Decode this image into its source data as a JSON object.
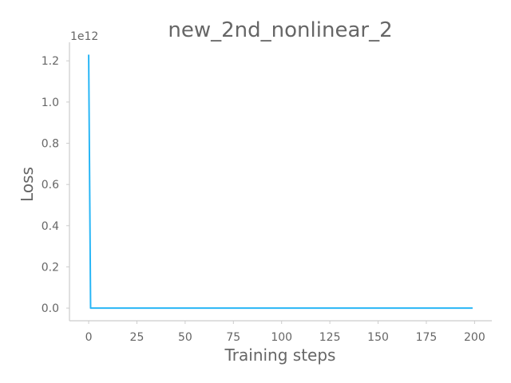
{
  "chart_data": {
    "type": "line",
    "title": "new_2nd_nonlinear_2",
    "xlabel": "Training steps",
    "ylabel": "Loss",
    "y_offset_label": "1e12",
    "y_scale": 1000000000000.0,
    "xlim": [
      -9.95,
      208.95
    ],
    "ylim": [
      -0.0615,
      1.29
    ],
    "x_ticks": [
      0,
      25,
      50,
      75,
      100,
      125,
      150,
      175,
      200
    ],
    "x_tick_labels": [
      "0",
      "25",
      "50",
      "75",
      "100",
      "125",
      "150",
      "175",
      "200"
    ],
    "y_ticks": [
      0.0,
      0.2,
      0.4,
      0.6,
      0.8,
      1.0,
      1.2
    ],
    "y_tick_labels": [
      "0.0",
      "0.2",
      "0.4",
      "0.6",
      "0.8",
      "1.0",
      "1.2"
    ],
    "grid": false,
    "series": [
      {
        "name": "loss",
        "color": "#29b6f6",
        "x": [
          0,
          1,
          2,
          199
        ],
        "y": [
          1.23,
          0.0,
          0.0,
          0.0
        ]
      }
    ]
  }
}
